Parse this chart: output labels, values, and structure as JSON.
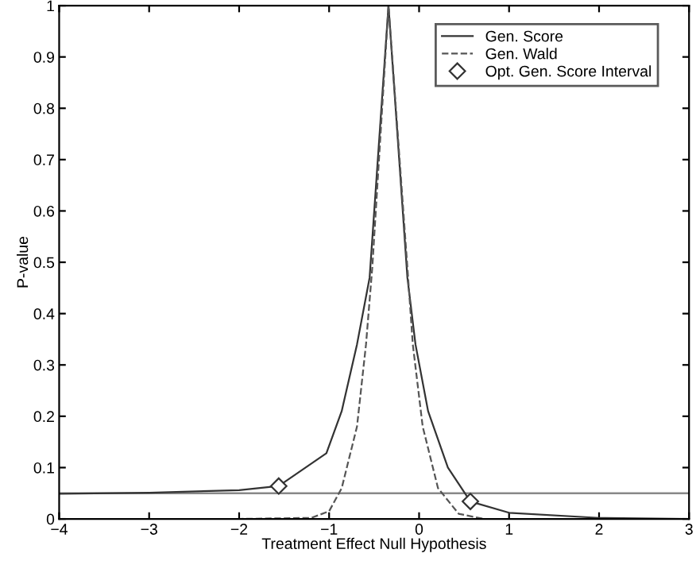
{
  "chart_data": {
    "type": "line",
    "xlabel": "Treatment Effect Null Hypothesis",
    "ylabel": "P-value",
    "xlim": [
      -4,
      3
    ],
    "ylim": [
      0,
      1
    ],
    "xticks": [
      {
        "value": -4,
        "label": "−4"
      },
      {
        "value": -3,
        "label": "−3"
      },
      {
        "value": -2,
        "label": "−2"
      },
      {
        "value": -1,
        "label": "−1"
      },
      0,
      1,
      2,
      3
    ],
    "yticks": [
      0,
      0.1,
      0.2,
      0.3,
      0.4,
      0.5,
      0.6,
      0.7,
      0.8,
      0.9,
      1
    ],
    "grid": false,
    "legend": "top right",
    "series": [
      {
        "name": "Gen. Score",
        "color": "#333333",
        "line_style": "solid",
        "marker": "none",
        "x": [
          -4,
          -3,
          -2,
          -1.56,
          -1.03,
          -0.86,
          -0.69,
          -0.55,
          -0.34,
          -0.13,
          -0.04,
          0.1,
          0.32,
          0.57,
          1.0,
          2.0,
          3.0
        ],
        "values": [
          0.049,
          0.051,
          0.056,
          0.064,
          0.128,
          0.21,
          0.34,
          0.47,
          1,
          0.47,
          0.34,
          0.21,
          0.1,
          0.034,
          0.012,
          0.002,
          0
        ]
      },
      {
        "name": "Gen. Wald",
        "color": "#555555",
        "line_style": "dashed",
        "marker": "none",
        "x": [
          -4,
          -2,
          -1.2,
          -1.0,
          -0.86,
          -0.69,
          -0.59,
          -0.52,
          -0.34,
          -0.13,
          -0.07,
          0.04,
          0.21,
          0.44,
          0.72,
          3.0
        ],
        "values": [
          0,
          0,
          0.002,
          0.015,
          0.06,
          0.18,
          0.34,
          0.49,
          1,
          0.49,
          0.34,
          0.18,
          0.06,
          0.01,
          0,
          0
        ]
      },
      {
        "name": "Opt. Gen. Score Interval",
        "type": "scatter",
        "color": "#333333",
        "marker": "diamond",
        "x": [
          -1.56,
          0.57
        ],
        "values": [
          0.064,
          0.034
        ]
      }
    ],
    "ref_lines": [
      {
        "axis": "y",
        "value": 0.05,
        "color": "#888888",
        "line_style": "solid"
      }
    ]
  }
}
